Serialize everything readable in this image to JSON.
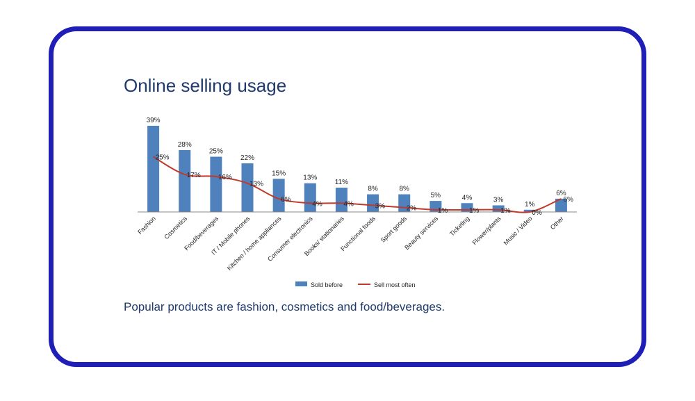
{
  "slide": {
    "title": "Online selling usage",
    "caption": "Popular products are fashion, cosmetics and food/beverages."
  },
  "colors": {
    "frame": "#1f1fb8",
    "text": "#1f3a6e",
    "bar": "#4f81bd",
    "line": "#c0392b"
  },
  "chart_data": {
    "type": "bar",
    "categories": [
      "Fashion",
      "Cosmetics",
      "Food/beverages",
      "IT / Mobile phones",
      "Kitchen / home appliances",
      "Consumer electronics",
      "Books/ stationaries",
      "Functional foods",
      "Sport goods",
      "Beauty services",
      "Ticketing",
      "Flower/plants",
      "Music / Video",
      "Other"
    ],
    "series": [
      {
        "name": "Sold before",
        "type": "bar",
        "values": [
          39,
          28,
          25,
          22,
          15,
          13,
          11,
          8,
          8,
          5,
          4,
          3,
          1,
          6
        ],
        "labels": [
          "39%",
          "28%",
          "25%",
          "22%",
          "15%",
          "13%",
          "11%",
          "8%",
          "8%",
          "5%",
          "4%",
          "3%",
          "1%",
          "6%"
        ]
      },
      {
        "name": "Sell most often",
        "type": "line",
        "values": [
          25,
          17,
          16,
          13,
          6,
          4,
          4,
          3,
          2,
          1,
          1,
          1,
          0,
          6
        ],
        "labels": [
          "25%",
          "17%",
          "16%",
          "13%",
          "6%",
          "4%",
          "4%",
          "3%",
          "2%",
          "1%",
          "1%",
          "1%",
          "0%",
          "6%"
        ]
      }
    ],
    "ylim": [
      0,
      39
    ],
    "legend_position": "bottom",
    "grid": false
  }
}
